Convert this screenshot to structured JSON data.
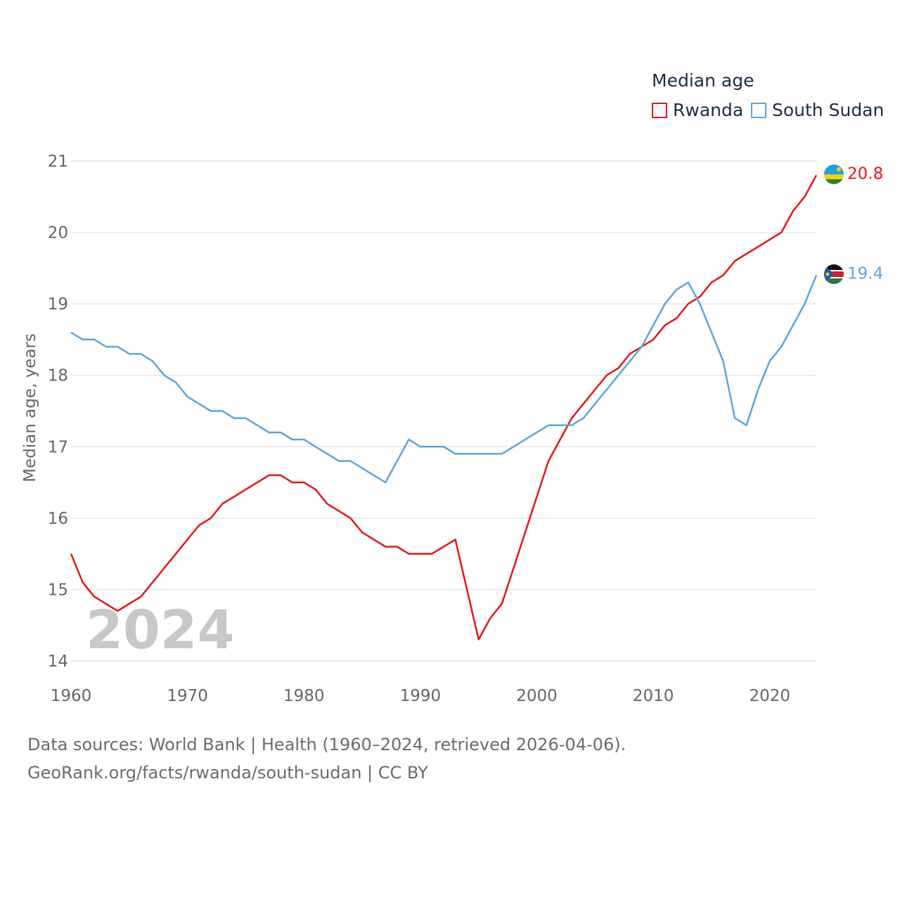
{
  "legend": {
    "title": "Median age",
    "items": [
      {
        "label": "Rwanda",
        "color": "#e8141a"
      },
      {
        "label": "South Sudan",
        "color": "#5aa5e0"
      }
    ]
  },
  "year_overlay": "2024",
  "source": {
    "line1": "Data sources: World Bank | Health (1960–2024, retrieved 2026-04-06).",
    "line2": "GeoRank.org/facts/rwanda/south-sudan | CC BY"
  },
  "chart_data": {
    "type": "line",
    "title": "Median age",
    "xlabel": "",
    "ylabel": "Median age, years",
    "xlim": [
      1960,
      2024
    ],
    "ylim": [
      14,
      21
    ],
    "x_ticks": [
      1960,
      1970,
      1980,
      1990,
      2000,
      2010,
      2020
    ],
    "y_ticks": [
      14,
      15,
      16,
      17,
      18,
      19,
      20,
      21
    ],
    "grid": true,
    "legend_position": "top-right",
    "x": [
      1960,
      1961,
      1962,
      1963,
      1964,
      1965,
      1966,
      1967,
      1968,
      1969,
      1970,
      1971,
      1972,
      1973,
      1974,
      1975,
      1976,
      1977,
      1978,
      1979,
      1980,
      1981,
      1982,
      1983,
      1984,
      1985,
      1986,
      1987,
      1988,
      1989,
      1990,
      1991,
      1992,
      1993,
      1994,
      1995,
      1996,
      1997,
      1998,
      1999,
      2000,
      2001,
      2002,
      2003,
      2004,
      2005,
      2006,
      2007,
      2008,
      2009,
      2010,
      2011,
      2012,
      2013,
      2014,
      2015,
      2016,
      2017,
      2018,
      2019,
      2020,
      2021,
      2022,
      2023,
      2024
    ],
    "series": [
      {
        "name": "Rwanda",
        "color": "#e8141a",
        "end_label": "20.8",
        "values": [
          15.5,
          15.1,
          14.9,
          14.8,
          14.7,
          14.8,
          14.9,
          15.1,
          15.3,
          15.5,
          15.7,
          15.9,
          16.0,
          16.2,
          16.3,
          16.4,
          16.5,
          16.6,
          16.6,
          16.5,
          16.5,
          16.4,
          16.2,
          16.1,
          16.0,
          15.8,
          15.7,
          15.6,
          15.6,
          15.5,
          15.5,
          15.5,
          15.6,
          15.7,
          15.0,
          14.3,
          14.6,
          14.8,
          15.3,
          15.8,
          16.3,
          16.8,
          17.1,
          17.4,
          17.6,
          17.8,
          18.0,
          18.1,
          18.3,
          18.4,
          18.5,
          18.7,
          18.8,
          19.0,
          19.1,
          19.3,
          19.4,
          19.6,
          19.7,
          19.8,
          19.9,
          20.0,
          20.3,
          20.5,
          20.8
        ]
      },
      {
        "name": "South Sudan",
        "color": "#5aa5e0",
        "end_label": "19.4",
        "values": [
          18.6,
          18.5,
          18.5,
          18.4,
          18.4,
          18.3,
          18.3,
          18.2,
          18.0,
          17.9,
          17.7,
          17.6,
          17.5,
          17.5,
          17.4,
          17.4,
          17.3,
          17.2,
          17.2,
          17.1,
          17.1,
          17.0,
          16.9,
          16.8,
          16.8,
          16.7,
          16.6,
          16.5,
          16.8,
          17.1,
          17.0,
          17.0,
          17.0,
          16.9,
          16.9,
          16.9,
          16.9,
          16.9,
          17.0,
          17.1,
          17.2,
          17.3,
          17.3,
          17.3,
          17.4,
          17.6,
          17.8,
          18.0,
          18.2,
          18.4,
          18.7,
          19.0,
          19.2,
          19.3,
          19.0,
          18.6,
          18.2,
          17.4,
          17.3,
          17.8,
          18.2,
          18.4,
          18.7,
          19.0,
          19.4
        ]
      }
    ]
  }
}
